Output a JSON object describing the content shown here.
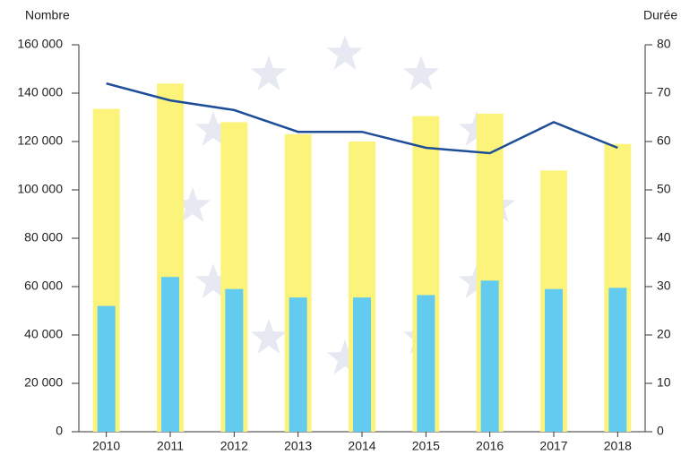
{
  "chart_data": {
    "type": "bar",
    "y_label": "Nombre",
    "y2_label": "Durée",
    "categories": [
      "2010",
      "2011",
      "2012",
      "2013",
      "2014",
      "2015",
      "2016",
      "2017",
      "2018"
    ],
    "series": [
      {
        "color": "#fcf47a",
        "values": [
          133500,
          144000,
          128000,
          123000,
          120000,
          130500,
          131500,
          108000,
          119000
        ]
      },
      {
        "color": "#63cbf0",
        "values": [
          52000,
          64000,
          59000,
          55500,
          55500,
          56500,
          62500,
          59000,
          59500
        ]
      },
      {
        "type": "line",
        "axis": "y2",
        "color": "#1f4e99",
        "values": [
          72,
          68.5,
          66.5,
          62,
          62,
          58.7,
          57.6,
          64,
          58.7
        ]
      }
    ],
    "ylim": [
      0,
      160000
    ],
    "yticks": [
      0,
      {
        "value": 20000,
        "label": "20 000"
      },
      {
        "value": 40000,
        "label": "40 000"
      },
      {
        "value": 60000,
        "label": "60 000"
      },
      {
        "value": 80000,
        "label": "80 000"
      },
      {
        "value": 100000,
        "label": "100 000"
      },
      {
        "value": 120000,
        "label": "120 000"
      },
      {
        "value": 140000,
        "label": "140 000"
      },
      {
        "value": 160000,
        "label": "160 000"
      }
    ],
    "y2lim": [
      0,
      80
    ],
    "y2ticks": [
      0,
      10,
      20,
      30,
      40,
      50,
      60,
      70,
      80
    ]
  }
}
